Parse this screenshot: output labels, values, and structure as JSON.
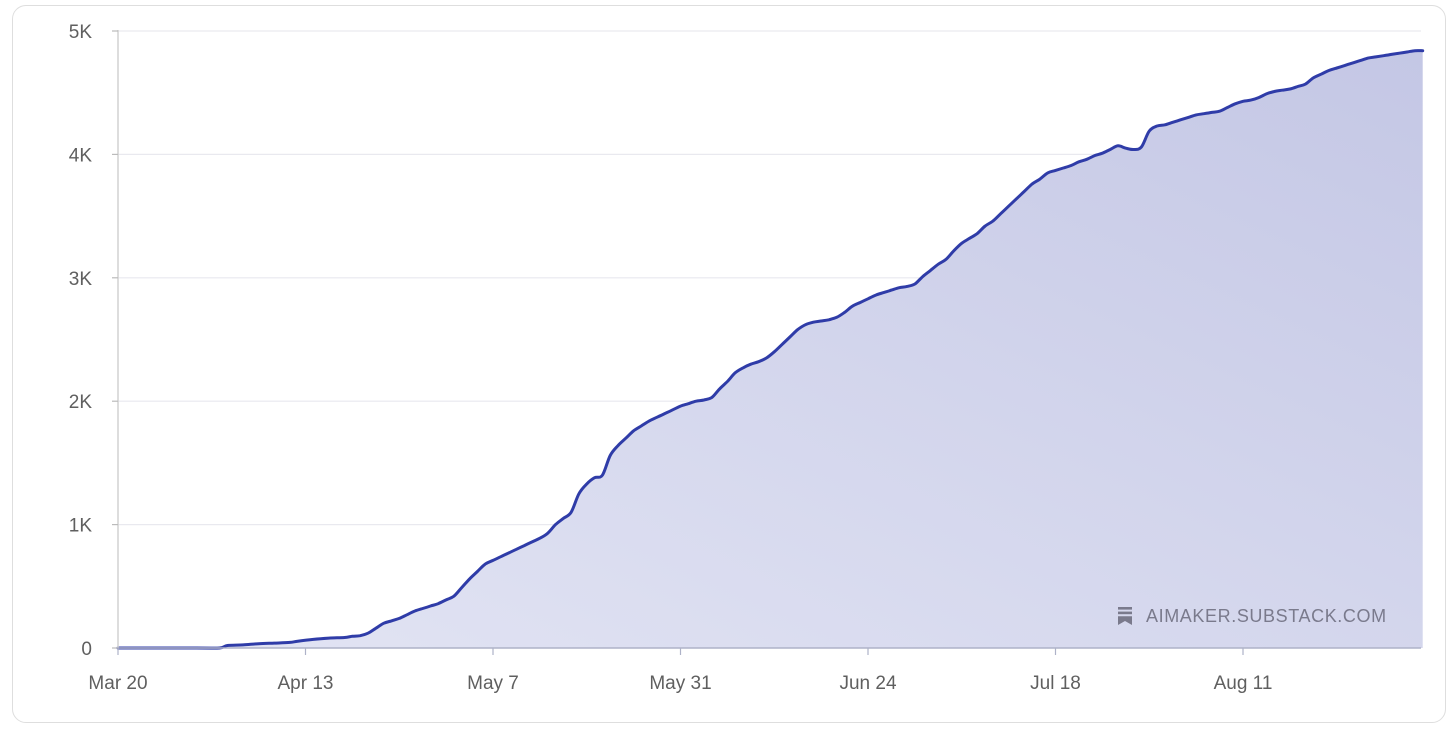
{
  "chart_data": {
    "type": "area",
    "title": "",
    "xlabel": "",
    "ylabel": "",
    "x_ticks": [
      "Mar 20",
      "Apr 13",
      "May 7",
      "May 31",
      "Jun 24",
      "Jul 18",
      "Aug 11"
    ],
    "x_range_days": [
      0,
      167
    ],
    "y_ticks": [
      {
        "value": 0,
        "label": "0"
      },
      {
        "value": 1000,
        "label": "1K"
      },
      {
        "value": 2000,
        "label": "2K"
      },
      {
        "value": 3000,
        "label": "3K"
      },
      {
        "value": 4000,
        "label": "4K"
      },
      {
        "value": 5000,
        "label": "5K"
      }
    ],
    "ylim": [
      0,
      5000
    ],
    "grid": true,
    "series": [
      {
        "color": "#2f3ca8",
        "fill": "#c5c8e6",
        "points": [
          [
            0,
            0
          ],
          [
            10,
            0
          ],
          [
            13,
            0
          ],
          [
            14,
            20
          ],
          [
            16,
            25
          ],
          [
            18,
            35
          ],
          [
            20,
            40
          ],
          [
            22,
            45
          ],
          [
            23,
            55
          ],
          [
            25,
            70
          ],
          [
            27,
            80
          ],
          [
            29,
            85
          ],
          [
            30,
            95
          ],
          [
            31,
            100
          ],
          [
            32,
            120
          ],
          [
            33,
            160
          ],
          [
            34,
            200
          ],
          [
            35,
            220
          ],
          [
            36,
            240
          ],
          [
            37,
            270
          ],
          [
            38,
            300
          ],
          [
            39,
            320
          ],
          [
            40,
            340
          ],
          [
            41,
            360
          ],
          [
            42,
            390
          ],
          [
            43,
            420
          ],
          [
            44,
            490
          ],
          [
            45,
            560
          ],
          [
            46,
            620
          ],
          [
            47,
            680
          ],
          [
            48,
            710
          ],
          [
            49,
            740
          ],
          [
            50,
            770
          ],
          [
            51,
            800
          ],
          [
            52,
            830
          ],
          [
            53,
            860
          ],
          [
            54,
            890
          ],
          [
            55,
            930
          ],
          [
            56,
            1000
          ],
          [
            57,
            1050
          ],
          [
            58,
            1100
          ],
          [
            59,
            1250
          ],
          [
            60,
            1330
          ],
          [
            61,
            1380
          ],
          [
            62,
            1400
          ],
          [
            63,
            1560
          ],
          [
            64,
            1640
          ],
          [
            65,
            1700
          ],
          [
            66,
            1760
          ],
          [
            67,
            1800
          ],
          [
            68,
            1840
          ],
          [
            69,
            1870
          ],
          [
            70,
            1900
          ],
          [
            71,
            1930
          ],
          [
            72,
            1960
          ],
          [
            73,
            1980
          ],
          [
            74,
            2000
          ],
          [
            75,
            2010
          ],
          [
            76,
            2030
          ],
          [
            77,
            2100
          ],
          [
            78,
            2160
          ],
          [
            79,
            2230
          ],
          [
            80,
            2270
          ],
          [
            81,
            2300
          ],
          [
            82,
            2320
          ],
          [
            83,
            2350
          ],
          [
            84,
            2400
          ],
          [
            85,
            2460
          ],
          [
            86,
            2520
          ],
          [
            87,
            2580
          ],
          [
            88,
            2620
          ],
          [
            89,
            2640
          ],
          [
            90,
            2650
          ],
          [
            91,
            2660
          ],
          [
            92,
            2680
          ],
          [
            93,
            2720
          ],
          [
            94,
            2770
          ],
          [
            95,
            2800
          ],
          [
            96,
            2830
          ],
          [
            97,
            2860
          ],
          [
            98,
            2880
          ],
          [
            99,
            2900
          ],
          [
            100,
            2920
          ],
          [
            101,
            2930
          ],
          [
            102,
            2950
          ],
          [
            103,
            3010
          ],
          [
            104,
            3060
          ],
          [
            105,
            3110
          ],
          [
            106,
            3150
          ],
          [
            107,
            3220
          ],
          [
            108,
            3280
          ],
          [
            109,
            3320
          ],
          [
            110,
            3360
          ],
          [
            111,
            3420
          ],
          [
            112,
            3460
          ],
          [
            113,
            3520
          ],
          [
            114,
            3580
          ],
          [
            115,
            3640
          ],
          [
            116,
            3700
          ],
          [
            117,
            3760
          ],
          [
            118,
            3800
          ],
          [
            119,
            3850
          ],
          [
            120,
            3870
          ],
          [
            121,
            3890
          ],
          [
            122,
            3910
          ],
          [
            123,
            3940
          ],
          [
            124,
            3960
          ],
          [
            125,
            3990
          ],
          [
            126,
            4010
          ],
          [
            127,
            4040
          ],
          [
            128,
            4070
          ],
          [
            129,
            4050
          ],
          [
            130,
            4040
          ],
          [
            131,
            4060
          ],
          [
            132,
            4190
          ],
          [
            133,
            4230
          ],
          [
            134,
            4240
          ],
          [
            135,
            4260
          ],
          [
            136,
            4280
          ],
          [
            137,
            4300
          ],
          [
            138,
            4320
          ],
          [
            139,
            4330
          ],
          [
            140,
            4340
          ],
          [
            141,
            4350
          ],
          [
            142,
            4380
          ],
          [
            143,
            4410
          ],
          [
            144,
            4430
          ],
          [
            145,
            4440
          ],
          [
            146,
            4460
          ],
          [
            147,
            4490
          ],
          [
            148,
            4510
          ],
          [
            149,
            4520
          ],
          [
            150,
            4530
          ],
          [
            151,
            4550
          ],
          [
            152,
            4570
          ],
          [
            153,
            4620
          ],
          [
            154,
            4650
          ],
          [
            155,
            4680
          ],
          [
            156,
            4700
          ],
          [
            157,
            4720
          ],
          [
            158,
            4740
          ],
          [
            159,
            4760
          ],
          [
            160,
            4780
          ],
          [
            161,
            4790
          ],
          [
            162,
            4800
          ],
          [
            163,
            4810
          ],
          [
            164,
            4820
          ],
          [
            165,
            4830
          ],
          [
            166,
            4840
          ],
          [
            167,
            4840
          ]
        ]
      }
    ]
  },
  "watermark": {
    "label": "AIMAKER.SUBSTACK.COM",
    "icon": "substack-bookmark-icon"
  }
}
